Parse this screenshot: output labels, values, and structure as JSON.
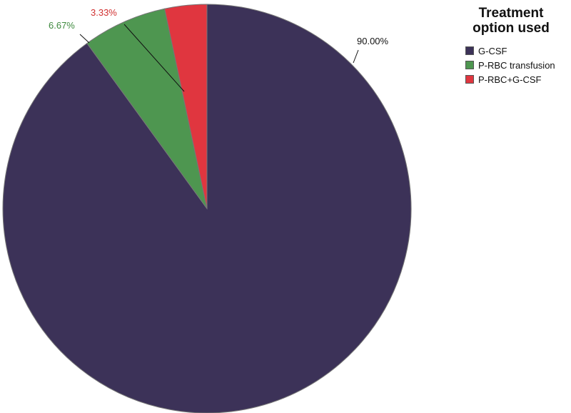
{
  "chart_data": {
    "type": "pie",
    "legend_title": "Treatment option used",
    "legend_position": "top-right",
    "categories": [
      "G-CSF",
      "P-RBC transfusion",
      "P-RBC+G-CSF"
    ],
    "values": [
      90.0,
      6.67,
      3.33
    ],
    "labels": [
      "90.00%",
      "6.67%",
      "3.33%"
    ],
    "colors": [
      "#3c3258",
      "#4e9650",
      "#e0363f"
    ],
    "label_colors": [
      "#111111",
      "#3f8a3f",
      "#d03030"
    ]
  }
}
